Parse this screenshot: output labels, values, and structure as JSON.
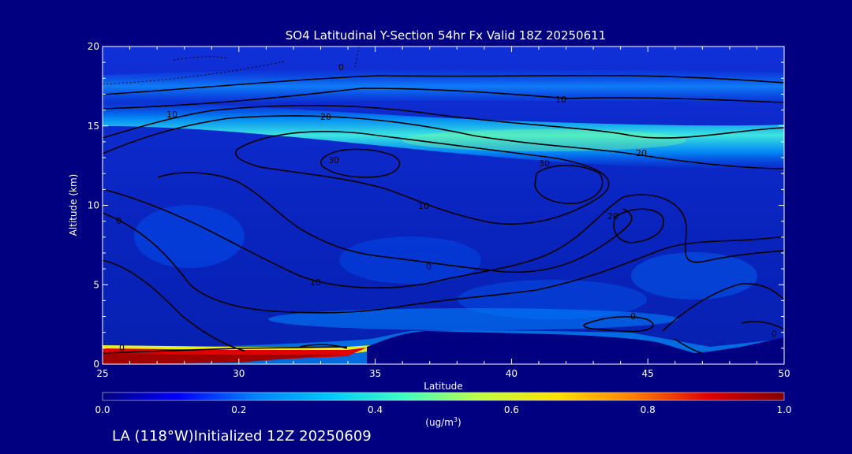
{
  "chart_data": {
    "type": "heatmap",
    "title": "SO4 Latitudinal Y-Section 54hr  Fx Valid 18Z 20250611",
    "xlabel": "Latitude",
    "ylabel": "Altitude (km)",
    "xlim": [
      25,
      50
    ],
    "ylim": [
      0,
      20
    ],
    "x_ticks": [
      "25",
      "30",
      "35",
      "40",
      "45",
      "50"
    ],
    "y_ticks": [
      "0",
      "5",
      "10",
      "15",
      "20"
    ],
    "colorbar": {
      "label": "(ug/m",
      "label_sup": "3",
      "label_close": ")",
      "range": [
        0.0,
        1.0
      ],
      "ticks": [
        "0.0",
        "0.2",
        "0.4",
        "0.6",
        "0.8",
        "1.0"
      ],
      "colors": [
        "#000080",
        "#0000ff",
        "#0080ff",
        "#00c8ff",
        "#40ffc0",
        "#c0ff40",
        "#ffe000",
        "#ff8000",
        "#e00000",
        "#800000"
      ]
    },
    "heat_bands": [
      {
        "desc": "upper layer",
        "altitude_km": 17.5,
        "value": 0.18
      },
      {
        "desc": "tropopause layer",
        "altitude_km": 14.0,
        "value": 0.5
      },
      {
        "desc": "surface layer",
        "altitude_km": 0.5,
        "lat_range": [
          25,
          35
        ],
        "value": 1.0
      }
    ],
    "contour_labels": [
      "0",
      "10",
      "20",
      "30",
      "10",
      "0",
      "20",
      "30",
      "10",
      "20",
      "10",
      "0",
      "0",
      "0",
      "0",
      "30",
      "10",
      "20"
    ],
    "terrain_km": [
      [
        25,
        0
      ],
      [
        34,
        0.5
      ],
      [
        35.5,
        1.2
      ],
      [
        37,
        1.7
      ],
      [
        40,
        1.4
      ],
      [
        45,
        1.2
      ],
      [
        47,
        0.4
      ],
      [
        50,
        1.3
      ]
    ]
  },
  "footer": "LA (118°W)Initialized 12Z 20250609"
}
